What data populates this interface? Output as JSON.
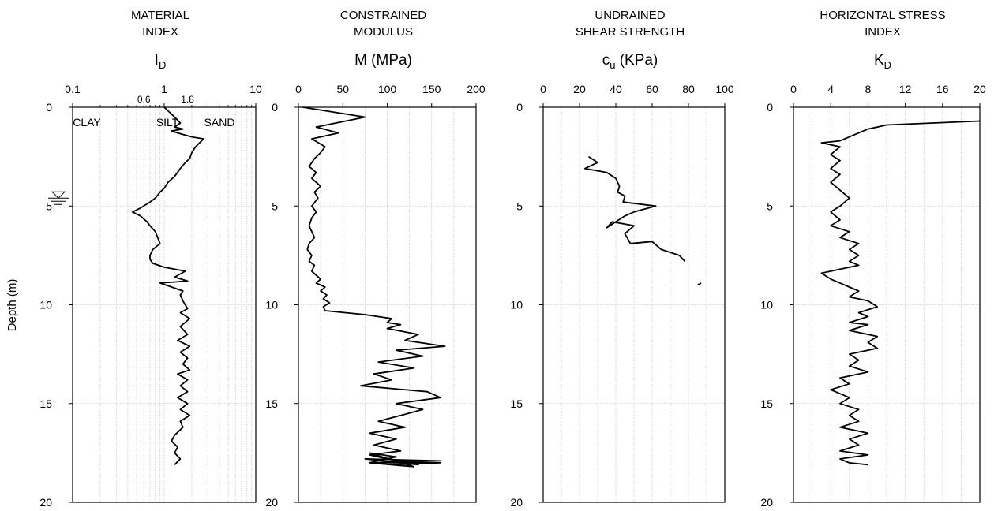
{
  "y_axis_label": "Depth (m)",
  "chart_data": [
    {
      "type": "line",
      "title_lines": [
        "MATERIAL",
        "INDEX"
      ],
      "symbol": "I",
      "symbol_sub": "D",
      "symbol_rest": "",
      "xscale": "log",
      "xlim": [
        0.1,
        10
      ],
      "ylim": [
        0,
        20
      ],
      "x_tick_labels": [
        {
          "v": 0.1,
          "label": "0.1"
        },
        {
          "v": 1,
          "label": "1"
        },
        {
          "v": 10,
          "label": "10"
        }
      ],
      "x_inner_labels": [
        {
          "v": 0.6,
          "label": "0.6"
        },
        {
          "v": 1.8,
          "label": "1.8"
        }
      ],
      "y_tick_labels": [
        "0",
        "5",
        "10",
        "15",
        "20"
      ],
      "zones": [
        "CLAY",
        "SILT",
        "SAND"
      ],
      "water_table_depth": 4.6,
      "grid": true,
      "series": [
        {
          "x": [
            1.0,
            1.3,
            1.5,
            1.3,
            1.6,
            1.2,
            1.4,
            2.0,
            2.7,
            2.2,
            2.0,
            1.9,
            1.7,
            1.5,
            1.3,
            1.1,
            1.0,
            0.9,
            0.8,
            0.7,
            0.55,
            0.45,
            0.55,
            0.65,
            0.7,
            0.8,
            0.85,
            0.9,
            0.75,
            0.7,
            0.7,
            0.75,
            1.0,
            1.7,
            1.3,
            1.8,
            0.9,
            1.6,
            1.5,
            1.6,
            1.8,
            1.5,
            1.9,
            1.5,
            1.8,
            1.4,
            1.9,
            1.5,
            1.8,
            1.6,
            1.9,
            1.4,
            1.8,
            1.5,
            1.8,
            1.4,
            1.8,
            1.5,
            1.9,
            1.5,
            1.6,
            1.3,
            1.2,
            1.4,
            1.3,
            1.5,
            1.3
          ],
          "y": [
            0.0,
            0.5,
            0.8,
            1.0,
            1.1,
            1.2,
            1.3,
            1.5,
            1.6,
            2.0,
            2.3,
            2.6,
            2.8,
            3.1,
            3.5,
            3.8,
            4.1,
            4.3,
            4.6,
            4.8,
            5.1,
            5.3,
            5.5,
            5.8,
            6.0,
            6.3,
            6.6,
            6.9,
            7.2,
            7.5,
            7.7,
            7.9,
            8.1,
            8.3,
            8.6,
            8.8,
            8.9,
            9.3,
            9.5,
            9.8,
            10.2,
            10.4,
            10.7,
            11.1,
            11.5,
            11.8,
            12.1,
            12.4,
            12.7,
            13.0,
            13.3,
            13.5,
            13.8,
            14.1,
            14.4,
            14.7,
            15.0,
            15.3,
            15.6,
            15.9,
            16.2,
            16.6,
            16.9,
            17.2,
            17.5,
            17.8,
            18.1
          ]
        }
      ]
    },
    {
      "type": "line",
      "title_lines": [
        "CONSTRAINED",
        "MODULUS"
      ],
      "symbol": "M (MPa)",
      "symbol_sub": "",
      "symbol_rest": "",
      "xscale": "linear",
      "xlim": [
        0,
        200
      ],
      "ylim": [
        0,
        20
      ],
      "x_tick_labels": [
        {
          "v": 0,
          "label": "0"
        },
        {
          "v": 50,
          "label": "50"
        },
        {
          "v": 100,
          "label": "100"
        },
        {
          "v": 150,
          "label": "150"
        },
        {
          "v": 200,
          "label": "200"
        }
      ],
      "y_tick_labels": [
        "0",
        "5",
        "10",
        "15",
        "20"
      ],
      "grid": true,
      "series": [
        {
          "x": [
            5,
            75,
            20,
            45,
            15,
            30,
            25,
            18,
            12,
            20,
            15,
            25,
            18,
            22,
            15,
            20,
            15,
            12,
            15,
            18,
            12,
            10,
            15,
            12,
            18,
            15,
            20,
            25,
            20,
            30,
            25,
            32,
            28,
            35,
            28,
            30,
            75,
            105,
            100,
            115,
            100,
            135,
            120,
            165,
            110,
            140,
            90,
            130,
            85,
            105,
            70,
            145,
            160,
            110,
            140,
            115,
            90,
            120,
            80,
            110,
            85,
            115,
            80,
            100,
            80,
            130,
            80,
            110,
            90,
            135,
            75,
            160,
            80,
            160,
            110
          ],
          "y": [
            0.0,
            0.5,
            1.0,
            1.3,
            1.6,
            2.0,
            2.3,
            2.6,
            3.0,
            3.3,
            3.6,
            4.0,
            4.3,
            4.6,
            5.0,
            5.3,
            5.6,
            6.0,
            6.3,
            6.6,
            6.9,
            7.2,
            7.5,
            7.8,
            8.0,
            8.3,
            8.5,
            8.7,
            8.9,
            9.1,
            9.3,
            9.5,
            9.7,
            9.9,
            10.1,
            10.3,
            10.5,
            10.7,
            10.9,
            11.0,
            11.2,
            11.5,
            11.8,
            12.1,
            12.3,
            12.6,
            12.9,
            13.2,
            13.5,
            13.8,
            14.1,
            14.4,
            14.7,
            15.0,
            15.3,
            15.6,
            15.9,
            16.2,
            16.5,
            16.8,
            17.1,
            17.4,
            17.6,
            17.8,
            18.0,
            18.2,
            17.5,
            17.7,
            17.9,
            18.1,
            17.8,
            17.9,
            18.0,
            18.0,
            18.1
          ]
        }
      ]
    },
    {
      "type": "line",
      "title_lines": [
        "UNDRAINED",
        "SHEAR STRENGTH"
      ],
      "symbol": "c",
      "symbol_sub": "u",
      "symbol_rest": " (KPa)",
      "xscale": "linear",
      "xlim": [
        0,
        100
      ],
      "ylim": [
        0,
        20
      ],
      "x_tick_labels": [
        {
          "v": 0,
          "label": "0"
        },
        {
          "v": 20,
          "label": "20"
        },
        {
          "v": 40,
          "label": "40"
        },
        {
          "v": 60,
          "label": "60"
        },
        {
          "v": 80,
          "label": "80"
        },
        {
          "v": 100,
          "label": "100"
        }
      ],
      "y_tick_labels": [
        "0",
        "5",
        "10",
        "15",
        "20"
      ],
      "grid": true,
      "series": [
        {
          "x": [
            25,
            30,
            23,
            35,
            40,
            42,
            41,
            45,
            44,
            62,
            50,
            45,
            40,
            35,
            38,
            50,
            45,
            48,
            60,
            65,
            75,
            78
          ],
          "y": [
            2.5,
            2.8,
            3.1,
            3.3,
            3.6,
            4.0,
            4.3,
            4.5,
            4.8,
            5.0,
            5.3,
            5.5,
            5.8,
            6.1,
            5.8,
            6.0,
            6.4,
            6.9,
            6.8,
            7.2,
            7.5,
            7.8
          ]
        },
        {
          "x": [
            85,
            87
          ],
          "y": [
            9.0,
            8.9
          ]
        }
      ]
    },
    {
      "type": "line",
      "title_lines": [
        "HORIZONTAL STRESS",
        "INDEX"
      ],
      "symbol": "K",
      "symbol_sub": "D",
      "symbol_rest": "",
      "xscale": "linear",
      "xlim": [
        0,
        20
      ],
      "ylim": [
        0,
        20
      ],
      "x_tick_labels": [
        {
          "v": 0,
          "label": "0"
        },
        {
          "v": 4,
          "label": "4"
        },
        {
          "v": 8,
          "label": "8"
        },
        {
          "v": 12,
          "label": "12"
        },
        {
          "v": 16,
          "label": "16"
        },
        {
          "v": 20,
          "label": "20"
        }
      ],
      "y_tick_labels": [
        "0",
        "5",
        "10",
        "15",
        "20"
      ],
      "grid": true,
      "series": [
        {
          "x": [
            20,
            15,
            10,
            9,
            8,
            7,
            6,
            5,
            3,
            5,
            4,
            5,
            4,
            5,
            4,
            5,
            6,
            5,
            4,
            5,
            4,
            6,
            5,
            7,
            6,
            7,
            6,
            7,
            6,
            5,
            3,
            4,
            5,
            6,
            7,
            6,
            8,
            9,
            7,
            8,
            6,
            8,
            6,
            9,
            8,
            9,
            6,
            7,
            6,
            8,
            5,
            6,
            4,
            6,
            5,
            7,
            6,
            7,
            5,
            8,
            6,
            7,
            5,
            8,
            5,
            6,
            8
          ],
          "y": [
            0.7,
            0.8,
            0.9,
            1.0,
            1.1,
            1.3,
            1.5,
            1.7,
            1.8,
            2.0,
            2.4,
            2.7,
            3.1,
            3.4,
            3.8,
            4.2,
            4.6,
            5.0,
            5.3,
            5.7,
            6.0,
            6.3,
            6.6,
            6.9,
            7.2,
            7.5,
            7.8,
            8.0,
            8.1,
            8.2,
            8.4,
            8.7,
            8.9,
            9.1,
            9.3,
            9.6,
            9.8,
            10.1,
            10.4,
            10.6,
            10.9,
            11.0,
            11.3,
            11.6,
            11.9,
            12.2,
            12.5,
            12.8,
            13.1,
            13.4,
            13.7,
            14.0,
            14.3,
            14.7,
            15.0,
            15.3,
            15.6,
            15.9,
            16.2,
            16.5,
            16.8,
            17.1,
            17.4,
            17.6,
            17.8,
            18.0,
            18.1
          ]
        }
      ]
    }
  ]
}
